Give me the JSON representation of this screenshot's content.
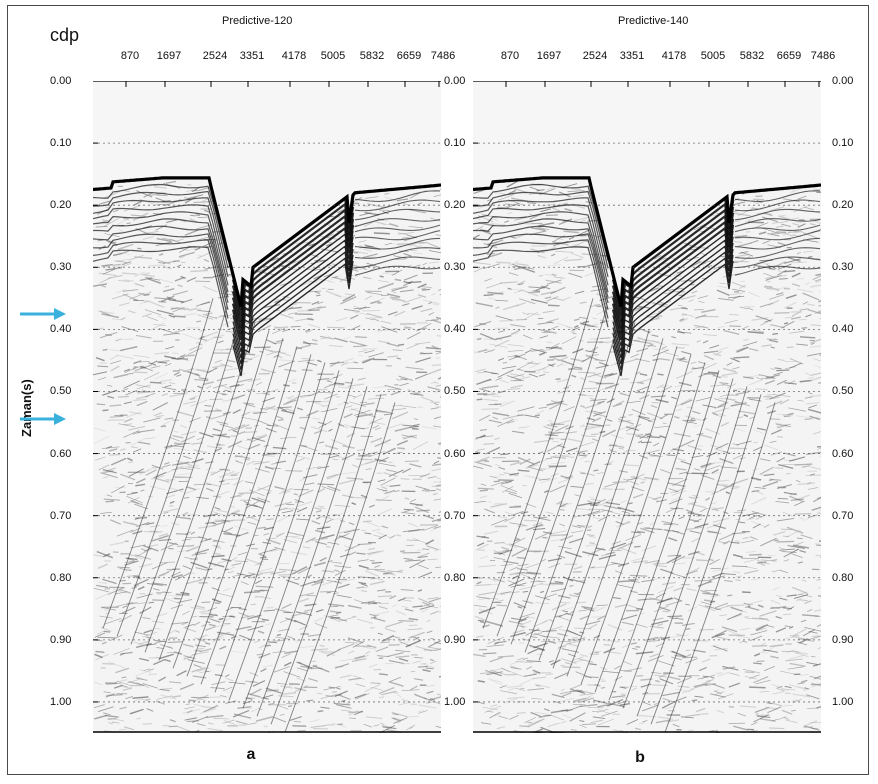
{
  "chart_data": {
    "type": "seismic-section",
    "ylabel": "Zaman(s)",
    "xaxis_name": "cdp",
    "xticks": [
      "870",
      "1697",
      "2524",
      "3351",
      "4178",
      "5005",
      "5832",
      "6659",
      "7486"
    ],
    "yticks": [
      "0.00",
      "0.10",
      "0.20",
      "0.30",
      "0.40",
      "0.50",
      "0.60",
      "0.70",
      "0.80",
      "0.90",
      "1.00"
    ],
    "ylim": [
      0.0,
      1.05
    ],
    "grid": "dotted horizontal",
    "panels": [
      {
        "title": "Predictive-120",
        "label": "a"
      },
      {
        "title": "Predictive-140",
        "label": "b"
      }
    ],
    "arrows_at_time": [
      0.36,
      0.52
    ],
    "arrow_color": "#39b1dc"
  }
}
